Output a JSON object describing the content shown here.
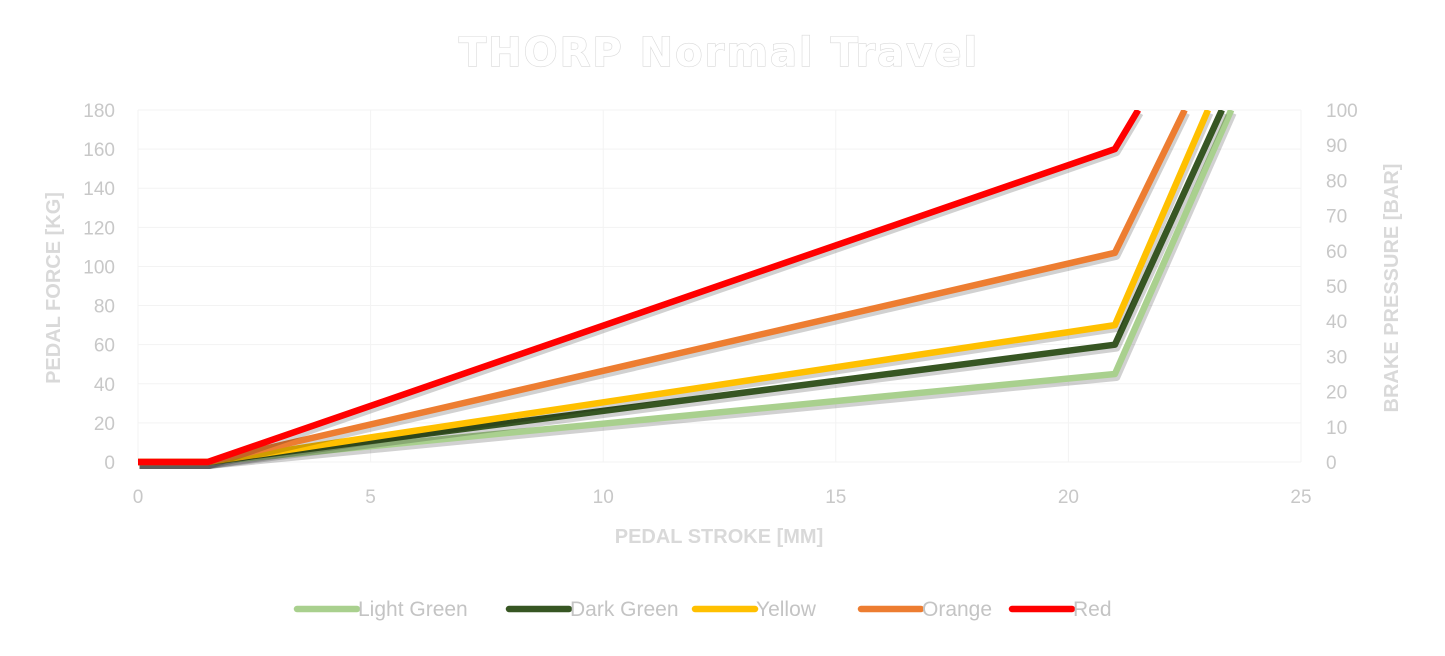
{
  "chart_data": {
    "type": "line",
    "title": "THORP Normal Travel",
    "xlabel": "PEDAL STROKE [MM]",
    "ylabel": "PEDAL FORCE [KG]",
    "y2label": "BRAKE PRESSURE [BAR]",
    "xlim": [
      0,
      25
    ],
    "ylim": [
      0,
      180
    ],
    "y2lim": [
      0,
      100
    ],
    "x_ticks": [
      "0",
      "5",
      "10",
      "15",
      "20",
      "25"
    ],
    "y_ticks": [
      "0",
      "20",
      "40",
      "60",
      "80",
      "100",
      "120",
      "140",
      "160",
      "180"
    ],
    "y2_ticks": [
      "0",
      "10",
      "20",
      "30",
      "40",
      "50",
      "60",
      "70",
      "80",
      "90",
      "100"
    ],
    "grid": true,
    "legend_position": "bottom",
    "series": [
      {
        "name": "Light Green",
        "color": "#a9d08e",
        "points": [
          [
            0,
            0
          ],
          [
            1.5,
            0
          ],
          [
            21,
            45
          ],
          [
            23.5,
            180
          ]
        ]
      },
      {
        "name": "Dark Green",
        "color": "#375623",
        "points": [
          [
            0,
            0
          ],
          [
            1.5,
            0
          ],
          [
            21,
            60
          ],
          [
            23.3,
            180
          ]
        ]
      },
      {
        "name": "Yellow",
        "color": "#ffc000",
        "points": [
          [
            0,
            0
          ],
          [
            1.5,
            0
          ],
          [
            21,
            70
          ],
          [
            23.0,
            180
          ]
        ]
      },
      {
        "name": "Orange",
        "color": "#ed7d31",
        "points": [
          [
            0,
            0
          ],
          [
            1.5,
            0
          ],
          [
            21,
            107
          ],
          [
            22.5,
            180
          ]
        ]
      },
      {
        "name": "Red",
        "color": "#ff0000",
        "points": [
          [
            0,
            0
          ],
          [
            1.5,
            0
          ],
          [
            21,
            160
          ],
          [
            21.5,
            180
          ]
        ]
      }
    ]
  }
}
